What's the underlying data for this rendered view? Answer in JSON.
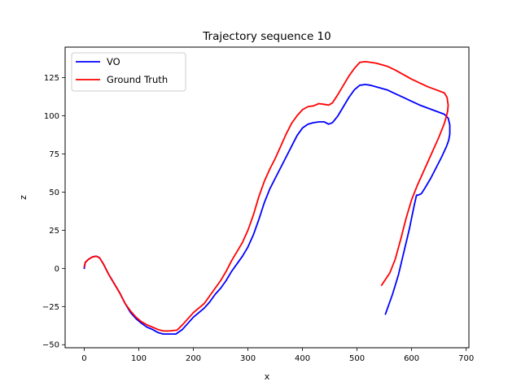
{
  "chart_data": {
    "type": "line",
    "title": "Trajectory sequence 10",
    "xlabel": "x",
    "ylabel": "z",
    "xlim": [
      -35,
      705
    ],
    "ylim": [
      -52,
      145
    ],
    "xticks": [
      0,
      100,
      200,
      300,
      400,
      500,
      600,
      700
    ],
    "yticks": [
      -50,
      -25,
      0,
      25,
      50,
      75,
      100,
      125
    ],
    "grid": false,
    "legend_position": "top-left",
    "series": [
      {
        "name": "VO",
        "color": "#0000ff",
        "points": [
          [
            0,
            0
          ],
          [
            2,
            4
          ],
          [
            8,
            6
          ],
          [
            15,
            7.5
          ],
          [
            22,
            8
          ],
          [
            28,
            7
          ],
          [
            35,
            3
          ],
          [
            45,
            -4
          ],
          [
            55,
            -10
          ],
          [
            65,
            -16
          ],
          [
            75,
            -23
          ],
          [
            85,
            -29
          ],
          [
            95,
            -33
          ],
          [
            105,
            -36
          ],
          [
            115,
            -38.5
          ],
          [
            125,
            -40
          ],
          [
            135,
            -42
          ],
          [
            145,
            -43
          ],
          [
            155,
            -43
          ],
          [
            168,
            -43
          ],
          [
            180,
            -40
          ],
          [
            190,
            -36
          ],
          [
            200,
            -32
          ],
          [
            210,
            -29
          ],
          [
            220,
            -26
          ],
          [
            230,
            -22
          ],
          [
            240,
            -17
          ],
          [
            250,
            -13
          ],
          [
            260,
            -8
          ],
          [
            270,
            -2
          ],
          [
            280,
            3
          ],
          [
            290,
            8
          ],
          [
            300,
            14
          ],
          [
            310,
            22
          ],
          [
            320,
            32
          ],
          [
            330,
            43
          ],
          [
            340,
            52
          ],
          [
            350,
            59
          ],
          [
            360,
            66
          ],
          [
            370,
            73
          ],
          [
            380,
            80
          ],
          [
            390,
            87
          ],
          [
            400,
            92
          ],
          [
            410,
            94.5
          ],
          [
            420,
            95.5
          ],
          [
            430,
            96
          ],
          [
            440,
            96
          ],
          [
            448,
            94.5
          ],
          [
            455,
            95.5
          ],
          [
            465,
            100
          ],
          [
            475,
            106
          ],
          [
            485,
            112
          ],
          [
            495,
            117
          ],
          [
            505,
            120
          ],
          [
            515,
            120.5
          ],
          [
            525,
            120
          ],
          [
            535,
            119
          ],
          [
            545,
            118
          ],
          [
            555,
            117
          ],
          [
            570,
            114.5
          ],
          [
            585,
            112
          ],
          [
            600,
            109.5
          ],
          [
            615,
            107
          ],
          [
            630,
            105
          ],
          [
            645,
            103
          ],
          [
            660,
            101
          ],
          [
            667,
            98.5
          ],
          [
            670,
            94
          ],
          [
            670,
            88
          ],
          [
            668,
            84
          ],
          [
            664,
            80
          ],
          [
            655,
            73
          ],
          [
            645,
            66
          ],
          [
            635,
            59
          ],
          [
            625,
            53
          ],
          [
            618,
            49
          ],
          [
            612,
            48
          ],
          [
            609,
            48
          ],
          [
            604,
            40
          ],
          [
            596,
            26
          ],
          [
            586,
            11
          ],
          [
            576,
            -4
          ],
          [
            565,
            -17
          ],
          [
            552,
            -30
          ]
        ]
      },
      {
        "name": "Ground Truth",
        "color": "#ff0000",
        "points": [
          [
            0,
            1
          ],
          [
            2,
            4
          ],
          [
            8,
            6
          ],
          [
            15,
            7.5
          ],
          [
            22,
            8
          ],
          [
            28,
            7
          ],
          [
            35,
            3
          ],
          [
            45,
            -4
          ],
          [
            55,
            -10
          ],
          [
            65,
            -16
          ],
          [
            75,
            -23
          ],
          [
            85,
            -28
          ],
          [
            95,
            -32
          ],
          [
            105,
            -35
          ],
          [
            115,
            -37
          ],
          [
            125,
            -38.5
          ],
          [
            135,
            -40
          ],
          [
            145,
            -41
          ],
          [
            155,
            -41
          ],
          [
            170,
            -40.5
          ],
          [
            180,
            -37
          ],
          [
            190,
            -33
          ],
          [
            200,
            -29
          ],
          [
            210,
            -26
          ],
          [
            220,
            -23
          ],
          [
            230,
            -18
          ],
          [
            240,
            -13
          ],
          [
            250,
            -8
          ],
          [
            260,
            -2
          ],
          [
            270,
            5
          ],
          [
            280,
            11
          ],
          [
            290,
            17
          ],
          [
            300,
            25
          ],
          [
            310,
            35
          ],
          [
            320,
            47
          ],
          [
            330,
            57
          ],
          [
            340,
            65
          ],
          [
            350,
            72
          ],
          [
            360,
            80
          ],
          [
            370,
            88
          ],
          [
            380,
            95
          ],
          [
            390,
            100
          ],
          [
            400,
            104
          ],
          [
            410,
            106
          ],
          [
            420,
            106.5
          ],
          [
            430,
            108
          ],
          [
            440,
            107.5
          ],
          [
            448,
            107
          ],
          [
            455,
            108.5
          ],
          [
            465,
            114
          ],
          [
            475,
            120
          ],
          [
            485,
            126
          ],
          [
            495,
            131
          ],
          [
            505,
            135
          ],
          [
            515,
            135.5
          ],
          [
            525,
            135
          ],
          [
            535,
            134.5
          ],
          [
            545,
            133.5
          ],
          [
            555,
            132.5
          ],
          [
            570,
            130
          ],
          [
            585,
            127
          ],
          [
            600,
            124
          ],
          [
            615,
            121.5
          ],
          [
            630,
            119
          ],
          [
            645,
            117
          ],
          [
            660,
            115
          ],
          [
            665,
            112
          ],
          [
            667,
            107
          ],
          [
            666,
            103
          ],
          [
            664,
            100
          ],
          [
            660,
            95
          ],
          [
            650,
            86
          ],
          [
            640,
            78
          ],
          [
            630,
            70
          ],
          [
            620,
            62
          ],
          [
            610,
            54
          ],
          [
            600,
            45
          ],
          [
            590,
            33
          ],
          [
            580,
            19
          ],
          [
            570,
            6
          ],
          [
            560,
            -3
          ],
          [
            545,
            -11
          ]
        ]
      }
    ]
  }
}
